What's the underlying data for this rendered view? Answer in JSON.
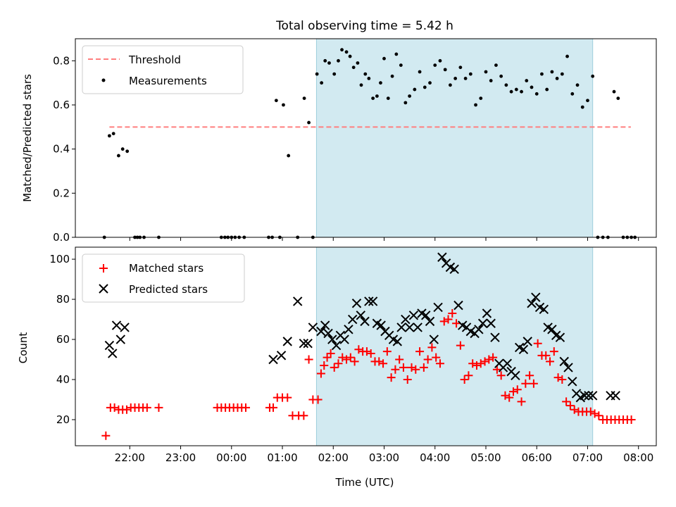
{
  "figure": {
    "title": "Total observing time = 5.42 h",
    "xlabel": "Time (UTC)",
    "x_tick_labels": [
      "22:00",
      "23:00",
      "00:00",
      "01:00",
      "02:00",
      "03:00",
      "04:00",
      "05:00",
      "06:00",
      "07:00",
      "08:00"
    ]
  },
  "chart_data": [
    {
      "type": "scatter",
      "ylabel": "Matched/Predicted stars",
      "ylim": [
        0,
        0.9
      ],
      "yticks": [
        0.0,
        0.2,
        0.4,
        0.6,
        0.8
      ],
      "xlim_hours": [
        20.93,
        32.35
      ],
      "tick_hours": [
        22,
        23,
        24,
        25,
        26,
        27,
        28,
        29,
        30,
        31,
        32
      ],
      "shaded_interval_hours": [
        25.67,
        31.1
      ],
      "shade_color": "#add8e6",
      "legend": {
        "position": "top-left",
        "entries": [
          "Threshold",
          "Measurements"
        ]
      },
      "series": [
        {
          "name": "Threshold",
          "style": "dashed-line",
          "color": "#ff7f7f",
          "x": [
            21.6,
            31.85
          ],
          "y": [
            0.5,
            0.5
          ]
        },
        {
          "name": "Measurements",
          "style": "dot",
          "color": "#000000",
          "x": [
            21.5,
            21.6,
            21.68,
            21.78,
            21.86,
            21.95,
            22.1,
            22.15,
            22.2,
            22.28,
            22.57,
            23.8,
            23.87,
            23.93,
            24.0,
            24.07,
            24.15,
            24.25,
            24.73,
            24.8,
            24.88,
            24.95,
            25.02,
            25.12,
            25.3,
            25.43,
            25.52,
            25.6,
            25.68,
            25.77,
            25.84,
            25.92,
            26.02,
            26.1,
            26.17,
            26.26,
            26.33,
            26.4,
            26.48,
            26.55,
            26.63,
            26.7,
            26.78,
            26.86,
            26.93,
            27.0,
            27.08,
            27.16,
            27.24,
            27.33,
            27.42,
            27.5,
            27.6,
            27.7,
            27.8,
            27.9,
            28.0,
            28.1,
            28.2,
            28.3,
            28.4,
            28.5,
            28.6,
            28.7,
            28.8,
            28.9,
            29.0,
            29.1,
            29.2,
            29.3,
            29.4,
            29.5,
            29.6,
            29.7,
            29.8,
            29.9,
            30.0,
            30.1,
            30.2,
            30.3,
            30.4,
            30.5,
            30.6,
            30.7,
            30.8,
            30.9,
            31.0,
            31.1,
            31.2,
            31.3,
            31.4,
            31.52,
            31.6,
            31.7,
            31.78,
            31.86,
            31.93
          ],
          "y": [
            0.0,
            0.46,
            0.47,
            0.37,
            0.4,
            0.39,
            0.0,
            0.0,
            0.0,
            0.0,
            0.0,
            0.0,
            0.0,
            0.0,
            0.0,
            0.0,
            0.0,
            0.0,
            0.0,
            0.0,
            0.62,
            0.0,
            0.6,
            0.37,
            0.0,
            0.63,
            0.52,
            0.0,
            0.74,
            0.7,
            0.8,
            0.79,
            0.74,
            0.8,
            0.85,
            0.84,
            0.82,
            0.77,
            0.79,
            0.69,
            0.74,
            0.72,
            0.63,
            0.64,
            0.7,
            0.81,
            0.63,
            0.73,
            0.83,
            0.78,
            0.61,
            0.64,
            0.67,
            0.75,
            0.68,
            0.7,
            0.78,
            0.8,
            0.76,
            0.69,
            0.72,
            0.77,
            0.72,
            0.74,
            0.6,
            0.63,
            0.75,
            0.71,
            0.78,
            0.73,
            0.69,
            0.66,
            0.67,
            0.66,
            0.71,
            0.68,
            0.65,
            0.74,
            0.67,
            0.75,
            0.72,
            0.74,
            0.82,
            0.65,
            0.69,
            0.59,
            0.62,
            0.73,
            0.0,
            0.0,
            0.0,
            0.66,
            0.63,
            0.0,
            0.0,
            0.0,
            0.0
          ]
        }
      ]
    },
    {
      "type": "scatter",
      "ylabel": "Count",
      "ylim": [
        7,
        106
      ],
      "yticks": [
        20,
        40,
        60,
        80,
        100
      ],
      "xlim_hours": [
        20.93,
        32.35
      ],
      "tick_hours": [
        22,
        23,
        24,
        25,
        26,
        27,
        28,
        29,
        30,
        31,
        32
      ],
      "shaded_interval_hours": [
        25.67,
        31.1
      ],
      "shade_color": "#add8e6",
      "legend": {
        "position": "top-left",
        "entries": [
          "Matched stars",
          "Predicted stars"
        ]
      },
      "series": [
        {
          "name": "Matched stars",
          "marker": "plus",
          "color": "#ff0000",
          "x": [
            21.53,
            21.62,
            21.7,
            21.78,
            21.86,
            21.94,
            22.02,
            22.1,
            22.18,
            22.26,
            22.34,
            22.57,
            23.72,
            23.8,
            23.88,
            23.96,
            24.04,
            24.12,
            24.2,
            24.28,
            24.75,
            24.82,
            24.9,
            25.0,
            25.1,
            25.2,
            25.32,
            25.42,
            25.52,
            25.6,
            25.7,
            25.76,
            25.82,
            25.88,
            25.95,
            26.02,
            26.1,
            26.18,
            26.26,
            26.34,
            26.42,
            26.5,
            26.58,
            26.66,
            26.74,
            26.82,
            26.9,
            26.98,
            27.06,
            27.14,
            27.22,
            27.3,
            27.38,
            27.46,
            27.54,
            27.62,
            27.7,
            27.78,
            27.86,
            27.94,
            28.02,
            28.1,
            28.18,
            28.26,
            28.34,
            28.42,
            28.5,
            28.58,
            28.66,
            28.74,
            28.82,
            28.9,
            28.98,
            29.06,
            29.14,
            29.22,
            29.3,
            29.38,
            29.46,
            29.54,
            29.62,
            29.7,
            29.78,
            29.86,
            29.94,
            30.02,
            30.1,
            30.18,
            30.26,
            30.34,
            30.42,
            30.5,
            30.58,
            30.66,
            30.74,
            30.82,
            30.9,
            30.98,
            31.06,
            31.14,
            31.22,
            31.3,
            31.38,
            31.46,
            31.54,
            31.62,
            31.7,
            31.78,
            31.86
          ],
          "y": [
            12,
            26,
            26,
            25,
            25,
            25,
            26,
            26,
            26,
            26,
            26,
            26,
            26,
            26,
            26,
            26,
            26,
            26,
            26,
            26,
            26,
            26,
            31,
            31,
            31,
            22,
            22,
            22,
            50,
            30,
            30,
            43,
            47,
            51,
            53,
            46,
            48,
            51,
            50,
            51,
            49,
            55,
            54,
            54,
            53,
            49,
            49,
            48,
            54,
            41,
            45,
            50,
            46,
            40,
            46,
            45,
            54,
            46,
            50,
            56,
            51,
            48,
            69,
            70,
            73,
            68,
            57,
            40,
            42,
            48,
            47,
            48,
            49,
            50,
            51,
            45,
            42,
            32,
            31,
            34,
            35,
            29,
            38,
            42,
            38,
            58,
            52,
            52,
            49,
            54,
            41,
            40,
            29,
            27,
            25,
            24,
            24,
            24,
            24,
            23,
            22,
            20,
            20,
            20,
            20,
            20,
            20,
            20,
            20
          ],
          "x_note": ""
        },
        {
          "name": "Predicted stars",
          "marker": "x",
          "color": "#000000",
          "x": [
            21.6,
            21.66,
            21.74,
            21.82,
            21.9,
            24.82,
            24.98,
            25.1,
            25.3,
            25.42,
            25.5,
            25.6,
            25.76,
            25.84,
            25.9,
            25.98,
            26.06,
            26.14,
            26.22,
            26.3,
            26.38,
            26.46,
            26.54,
            26.62,
            26.7,
            26.78,
            26.86,
            26.94,
            27.02,
            27.1,
            27.18,
            27.26,
            27.34,
            27.42,
            27.5,
            27.58,
            27.66,
            27.74,
            27.82,
            27.9,
            27.98,
            28.06,
            28.14,
            28.22,
            28.3,
            28.38,
            28.46,
            28.54,
            28.62,
            28.7,
            28.78,
            28.86,
            28.94,
            29.02,
            29.1,
            29.18,
            29.26,
            29.34,
            29.42,
            29.5,
            29.58,
            29.66,
            29.74,
            29.82,
            29.9,
            29.98,
            30.06,
            30.14,
            30.22,
            30.3,
            30.38,
            30.46,
            30.54,
            30.62,
            30.7,
            30.78,
            30.86,
            30.94,
            31.02,
            31.1,
            31.45,
            31.55
          ],
          "y": [
            57,
            53,
            67,
            60,
            66,
            50,
            52,
            59,
            79,
            58,
            58,
            66,
            64,
            67,
            63,
            60,
            57,
            62,
            60,
            65,
            70,
            78,
            72,
            69,
            79,
            79,
            68,
            67,
            64,
            62,
            60,
            59,
            66,
            70,
            66,
            72,
            66,
            73,
            72,
            69,
            60,
            76,
            101,
            98,
            96,
            95,
            77,
            67,
            66,
            64,
            63,
            65,
            68,
            73,
            68,
            61,
            48,
            46,
            48,
            44,
            42,
            56,
            55,
            59,
            78,
            81,
            76,
            75,
            66,
            65,
            62,
            61,
            49,
            46,
            39,
            33,
            31,
            32,
            32,
            32,
            32,
            32
          ],
          "x_note": ""
        }
      ]
    }
  ]
}
